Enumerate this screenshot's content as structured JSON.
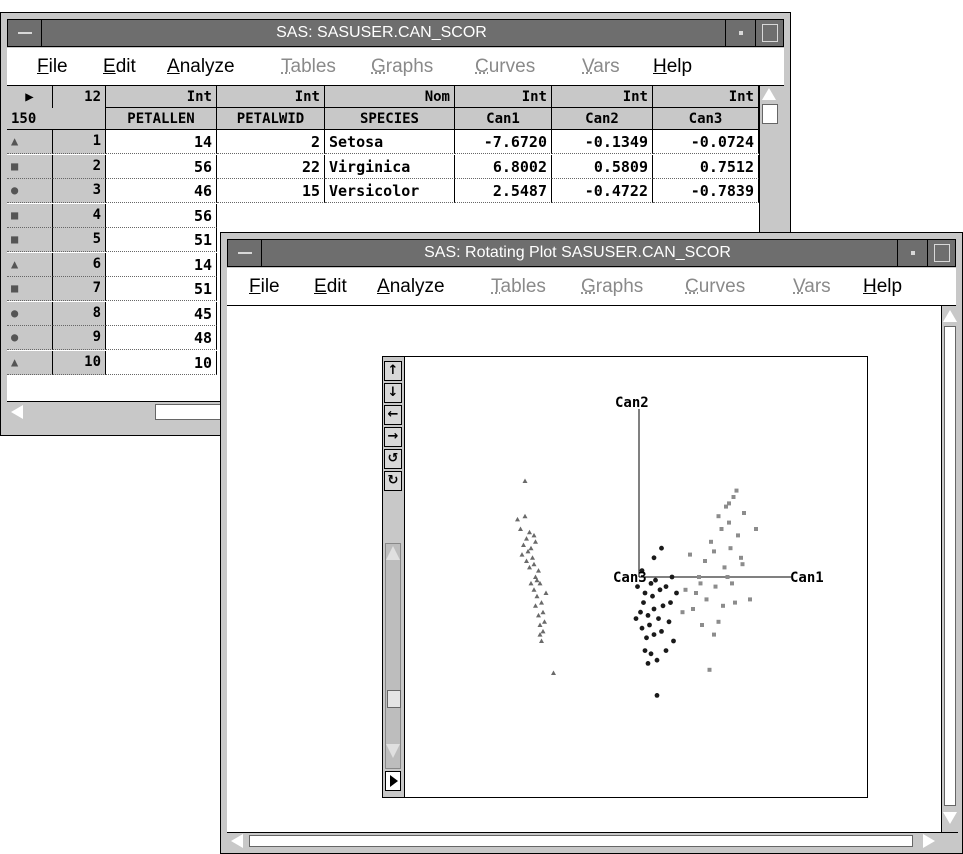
{
  "table_window": {
    "title": "SAS: SASUSER.CAN_SCOR",
    "menu": [
      {
        "label": "File",
        "enabled": true
      },
      {
        "label": "Edit",
        "enabled": true
      },
      {
        "label": "Analyze",
        "enabled": true
      },
      {
        "label": "Tables",
        "enabled": false
      },
      {
        "label": "Graphs",
        "enabled": false
      },
      {
        "label": "Curves",
        "enabled": false
      },
      {
        "label": "Vars",
        "enabled": false
      },
      {
        "label": "Help",
        "enabled": true
      }
    ],
    "corner": {
      "cols": "12",
      "rows": "150"
    },
    "columns": [
      {
        "type": "Int",
        "name": "PETALLEN"
      },
      {
        "type": "Int",
        "name": "PETALWID"
      },
      {
        "type": "Nom",
        "name": "SPECIES"
      },
      {
        "type": "Int",
        "name": "Can1"
      },
      {
        "type": "Int",
        "name": "Can2"
      },
      {
        "type": "Int",
        "name": "Can3"
      }
    ],
    "rows": [
      {
        "marker": "▲",
        "num": "1",
        "cells": [
          "14",
          "2",
          "Setosa",
          "-7.6720",
          "-0.1349",
          "-0.0724"
        ]
      },
      {
        "marker": "■",
        "num": "2",
        "cells": [
          "56",
          "22",
          "Virginica",
          "6.8002",
          "0.5809",
          "0.7512"
        ]
      },
      {
        "marker": "●",
        "num": "3",
        "cells": [
          "46",
          "15",
          "Versicolor",
          "2.5487",
          "-0.4722",
          "-0.7839"
        ]
      },
      {
        "marker": "■",
        "num": "4",
        "cells": [
          "56"
        ]
      },
      {
        "marker": "■",
        "num": "5",
        "cells": [
          "51"
        ]
      },
      {
        "marker": "▲",
        "num": "6",
        "cells": [
          "14"
        ]
      },
      {
        "marker": "■",
        "num": "7",
        "cells": [
          "51"
        ]
      },
      {
        "marker": "●",
        "num": "8",
        "cells": [
          "45"
        ]
      },
      {
        "marker": "●",
        "num": "9",
        "cells": [
          "48"
        ]
      },
      {
        "marker": "▲",
        "num": "10",
        "cells": [
          "10"
        ]
      }
    ]
  },
  "plot_window": {
    "title": "SAS: Rotating Plot SASUSER.CAN_SCOR",
    "menu": [
      {
        "label": "File",
        "enabled": true
      },
      {
        "label": "Edit",
        "enabled": true
      },
      {
        "label": "Analyze",
        "enabled": true
      },
      {
        "label": "Tables",
        "enabled": false
      },
      {
        "label": "Graphs",
        "enabled": false
      },
      {
        "label": "Curves",
        "enabled": false
      },
      {
        "label": "Vars",
        "enabled": false
      },
      {
        "label": "Help",
        "enabled": true
      }
    ],
    "tool_buttons": [
      "up-arrow-icon",
      "down-arrow-icon",
      "left-arrow-icon",
      "right-arrow-icon",
      "rotate-ccw-icon",
      "rotate-cw-icon"
    ]
  },
  "chart_data": {
    "type": "scatter",
    "axis_labels": [
      "Can1",
      "Can2",
      "Can3"
    ],
    "colors": {
      "setosa": "#6a6a6a",
      "versicolor": "#1a1a1a",
      "virginica": "#8c8c8c"
    },
    "series": [
      {
        "marker": "triangle",
        "points": [
          [
            -7.6,
            3.0
          ],
          [
            -8.1,
            1.8
          ],
          [
            -7.9,
            1.5
          ],
          [
            -7.5,
            1.2
          ],
          [
            -7.3,
            1.4
          ],
          [
            -7.7,
            1.0
          ],
          [
            -7.0,
            1.3
          ],
          [
            -7.4,
            0.8
          ],
          [
            -7.8,
            0.7
          ],
          [
            -7.2,
            0.9
          ],
          [
            -7.5,
            0.5
          ],
          [
            -7.0,
            0.4
          ],
          [
            -6.7,
            0.2
          ],
          [
            -7.3,
            0.3
          ],
          [
            -6.9,
            0.0
          ],
          [
            -7.2,
            -0.2
          ],
          [
            -6.6,
            -0.2
          ],
          [
            -7.0,
            -0.4
          ],
          [
            -6.8,
            -0.6
          ],
          [
            -6.5,
            -0.8
          ],
          [
            -6.9,
            -0.9
          ],
          [
            -6.4,
            -1.1
          ],
          [
            -6.7,
            -1.2
          ],
          [
            -6.3,
            -1.4
          ],
          [
            -6.6,
            -1.5
          ],
          [
            -6.4,
            -1.7
          ],
          [
            -6.5,
            -2.0
          ],
          [
            -5.7,
            -3.0
          ],
          [
            -7.6,
            1.9
          ],
          [
            -6.9,
            1.1
          ],
          [
            -7.1,
            0.6
          ],
          [
            -6.8,
            -0.1
          ],
          [
            -6.2,
            -0.5
          ],
          [
            -6.6,
            -1.8
          ]
        ]
      },
      {
        "marker": "circle",
        "points": [
          [
            2.5,
            -0.5
          ],
          [
            1.5,
            0.9
          ],
          [
            1.0,
            0.6
          ],
          [
            0.2,
            0.2
          ],
          [
            -0.1,
            -0.3
          ],
          [
            0.4,
            -0.5
          ],
          [
            0.8,
            -0.2
          ],
          [
            1.1,
            -0.1
          ],
          [
            1.4,
            -0.4
          ],
          [
            1.6,
            -0.9
          ],
          [
            0.9,
            -0.6
          ],
          [
            0.3,
            -0.8
          ],
          [
            0.1,
            -1.1
          ],
          [
            0.6,
            -1.2
          ],
          [
            1.0,
            -1.0
          ],
          [
            1.3,
            -1.3
          ],
          [
            0.7,
            -1.5
          ],
          [
            0.2,
            -1.6
          ],
          [
            0.5,
            -1.9
          ],
          [
            1.0,
            -1.8
          ],
          [
            1.5,
            -1.7
          ],
          [
            0.4,
            -2.3
          ],
          [
            0.8,
            -2.4
          ],
          [
            1.2,
            -2.6
          ],
          [
            0.6,
            -2.7
          ],
          [
            1.8,
            -2.3
          ],
          [
            2.0,
            -1.4
          ],
          [
            1.8,
            -0.3
          ],
          [
            2.2,
            0.0
          ],
          [
            1.2,
            -3.7
          ],
          [
            2.3,
            -2.0
          ],
          [
            -0.2,
            -1.3
          ],
          [
            2.1,
            -0.8
          ]
        ]
      },
      {
        "marker": "square",
        "points": [
          [
            6.8,
            0.6
          ],
          [
            6.5,
            2.7
          ],
          [
            6.3,
            2.5
          ],
          [
            5.8,
            2.2
          ],
          [
            7.0,
            2.0
          ],
          [
            6.0,
            1.7
          ],
          [
            5.3,
            1.9
          ],
          [
            6.6,
            1.3
          ],
          [
            5.5,
            1.5
          ],
          [
            4.8,
            1.1
          ],
          [
            6.1,
            0.9
          ],
          [
            5.0,
            0.8
          ],
          [
            6.9,
            0.4
          ],
          [
            4.4,
            0.5
          ],
          [
            5.7,
            0.3
          ],
          [
            4.0,
            0.0
          ],
          [
            5.1,
            -0.3
          ],
          [
            3.8,
            -0.5
          ],
          [
            4.5,
            -0.7
          ],
          [
            5.6,
            -0.9
          ],
          [
            6.4,
            -0.8
          ],
          [
            7.4,
            -0.7
          ],
          [
            3.6,
            -1.0
          ],
          [
            4.2,
            -1.5
          ],
          [
            5.3,
            -1.4
          ],
          [
            2.9,
            -1.1
          ],
          [
            4.7,
            -2.9
          ],
          [
            5.9,
            0.0
          ],
          [
            3.4,
            0.7
          ],
          [
            6.2,
            -0.2
          ],
          [
            7.8,
            1.5
          ],
          [
            5.0,
            -1.8
          ],
          [
            4.1,
            -0.2
          ],
          [
            6.0,
            2.3
          ],
          [
            3.1,
            -0.4
          ]
        ]
      }
    ]
  }
}
